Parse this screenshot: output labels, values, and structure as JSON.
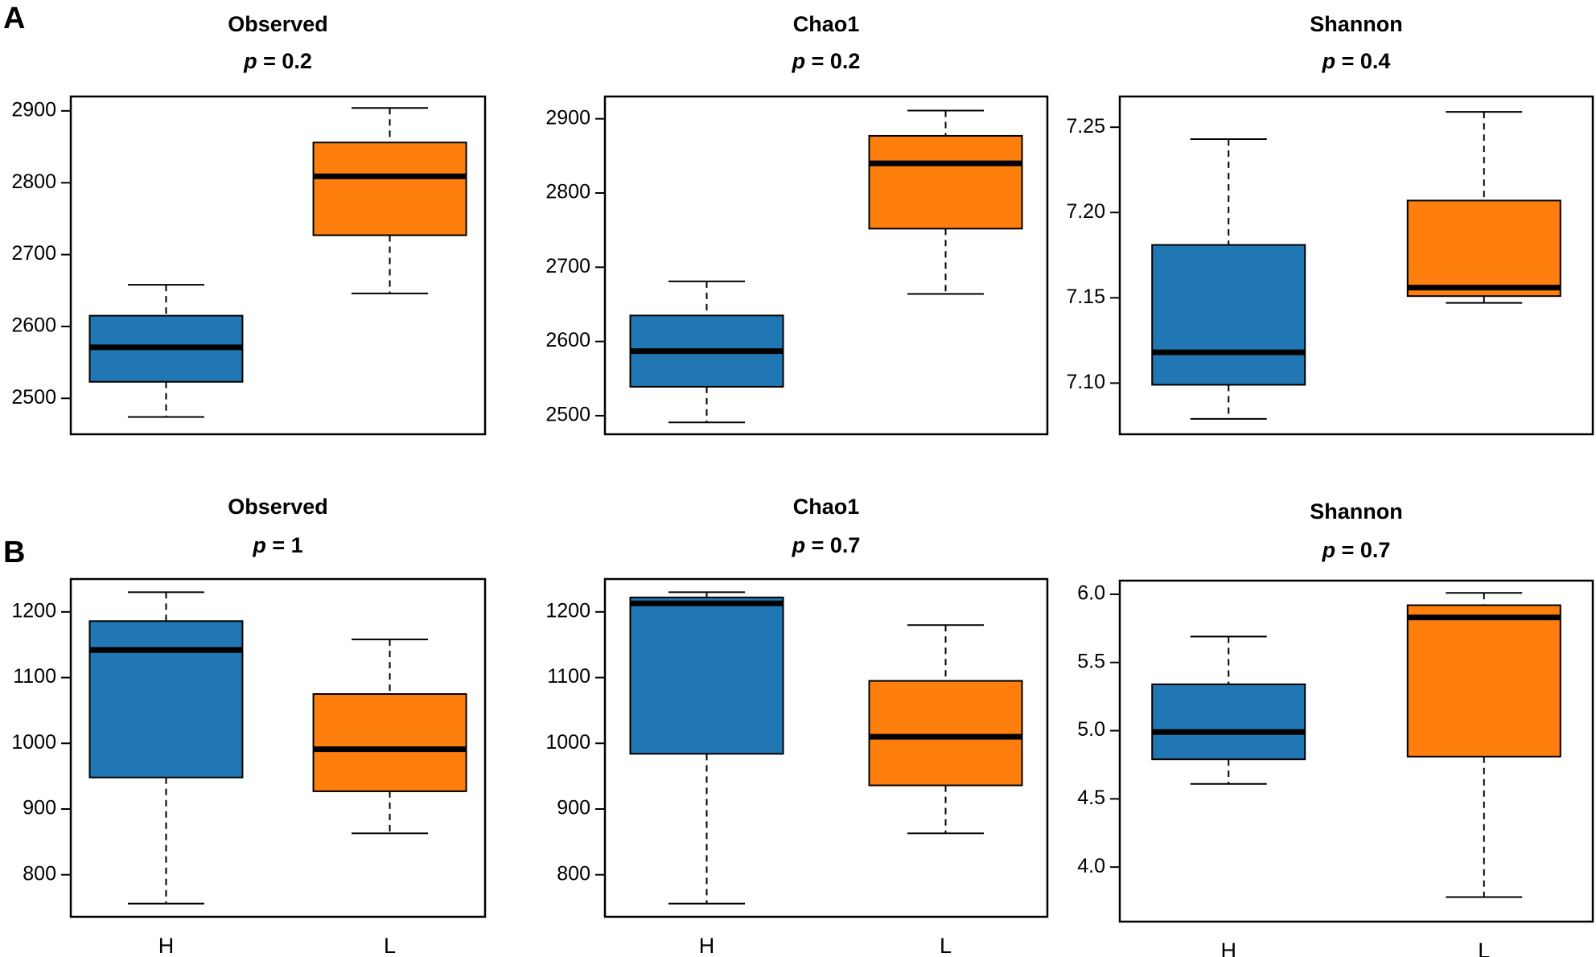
{
  "panels": [
    {
      "label": "A"
    },
    {
      "label": "B"
    }
  ],
  "chart_data": [
    {
      "type": "boxplot",
      "panel": "A",
      "title": "Observed",
      "p_value": "p = 0.2",
      "categories": [
        "H",
        "L"
      ],
      "colors": [
        "#2077b4",
        "#ff7f0e"
      ],
      "show_xticks": false,
      "ylim": [
        2450,
        2920
      ],
      "yticks": [
        2500,
        2600,
        2700,
        2800,
        2900
      ],
      "ytick_labels": [
        "2500",
        "2600",
        "2700",
        "2800",
        "2900"
      ],
      "boxes": [
        {
          "name": "H",
          "min": 2474,
          "q1": 2523,
          "median": 2571,
          "q3": 2615,
          "max": 2658
        },
        {
          "name": "L",
          "min": 2646,
          "q1": 2727,
          "median": 2809,
          "q3": 2856,
          "max": 2904
        }
      ]
    },
    {
      "type": "boxplot",
      "panel": "A",
      "title": "Chao1",
      "p_value": "p = 0.2",
      "categories": [
        "H",
        "L"
      ],
      "colors": [
        "#2077b4",
        "#ff7f0e"
      ],
      "show_xticks": false,
      "ylim": [
        2475,
        2930
      ],
      "yticks": [
        2500,
        2600,
        2700,
        2800,
        2900
      ],
      "ytick_labels": [
        "2500",
        "2600",
        "2700",
        "2800",
        "2900"
      ],
      "boxes": [
        {
          "name": "H",
          "min": 2491,
          "q1": 2539,
          "median": 2587,
          "q3": 2635,
          "max": 2681
        },
        {
          "name": "L",
          "min": 2664,
          "q1": 2752,
          "median": 2840,
          "q3": 2877,
          "max": 2911
        }
      ]
    },
    {
      "type": "boxplot",
      "panel": "A",
      "title": "Shannon",
      "p_value": "p = 0.4",
      "categories": [
        "H",
        "L"
      ],
      "colors": [
        "#2077b4",
        "#ff7f0e"
      ],
      "show_xticks": false,
      "ylim": [
        7.07,
        7.268
      ],
      "yticks": [
        7.1,
        7.15,
        7.2,
        7.25
      ],
      "ytick_labels": [
        "7.10",
        "7.15",
        "7.20",
        "7.25"
      ],
      "boxes": [
        {
          "name": "H",
          "min": 7.079,
          "q1": 7.099,
          "median": 7.118,
          "q3": 7.181,
          "max": 7.243
        },
        {
          "name": "L",
          "min": 7.147,
          "q1": 7.151,
          "median": 7.156,
          "q3": 7.207,
          "max": 7.259
        }
      ]
    },
    {
      "type": "boxplot",
      "panel": "B",
      "title": "Observed",
      "p_value": "p = 1",
      "categories": [
        "H",
        "L"
      ],
      "colors": [
        "#2077b4",
        "#ff7f0e"
      ],
      "show_xticks": true,
      "ylim": [
        736,
        1250
      ],
      "yticks": [
        800,
        900,
        1000,
        1100,
        1200
      ],
      "ytick_labels": [
        "800",
        "900",
        "1000",
        "1100",
        "1200"
      ],
      "boxes": [
        {
          "name": "H",
          "min": 756,
          "q1": 948,
          "median": 1142,
          "q3": 1186,
          "max": 1230
        },
        {
          "name": "L",
          "min": 863,
          "q1": 927,
          "median": 991,
          "q3": 1075,
          "max": 1158
        }
      ]
    },
    {
      "type": "boxplot",
      "panel": "B",
      "title": "Chao1",
      "p_value": "p = 0.7",
      "categories": [
        "H",
        "L"
      ],
      "colors": [
        "#2077b4",
        "#ff7f0e"
      ],
      "show_xticks": true,
      "ylim": [
        736,
        1250
      ],
      "yticks": [
        800,
        900,
        1000,
        1100,
        1200
      ],
      "ytick_labels": [
        "800",
        "900",
        "1000",
        "1100",
        "1200"
      ],
      "boxes": [
        {
          "name": "H",
          "min": 756,
          "q1": 984,
          "median": 1213,
          "q3": 1222,
          "max": 1230
        },
        {
          "name": "L",
          "min": 863,
          "q1": 936,
          "median": 1010,
          "q3": 1095,
          "max": 1180
        }
      ]
    },
    {
      "type": "boxplot",
      "panel": "B",
      "title": "Shannon",
      "p_value": "p = 0.7",
      "categories": [
        "H",
        "L"
      ],
      "colors": [
        "#2077b4",
        "#ff7f0e"
      ],
      "show_xticks": true,
      "ylim": [
        3.6,
        6.1
      ],
      "yticks": [
        4.0,
        4.5,
        5.0,
        5.5,
        6.0
      ],
      "ytick_labels": [
        "4.0",
        "4.5",
        "5.0",
        "5.5",
        "6.0"
      ],
      "boxes": [
        {
          "name": "H",
          "min": 4.61,
          "q1": 4.79,
          "median": 4.99,
          "q3": 5.34,
          "max": 5.69
        },
        {
          "name": "L",
          "min": 3.78,
          "q1": 4.81,
          "median": 5.83,
          "q3": 5.92,
          "max": 6.01
        }
      ]
    }
  ]
}
